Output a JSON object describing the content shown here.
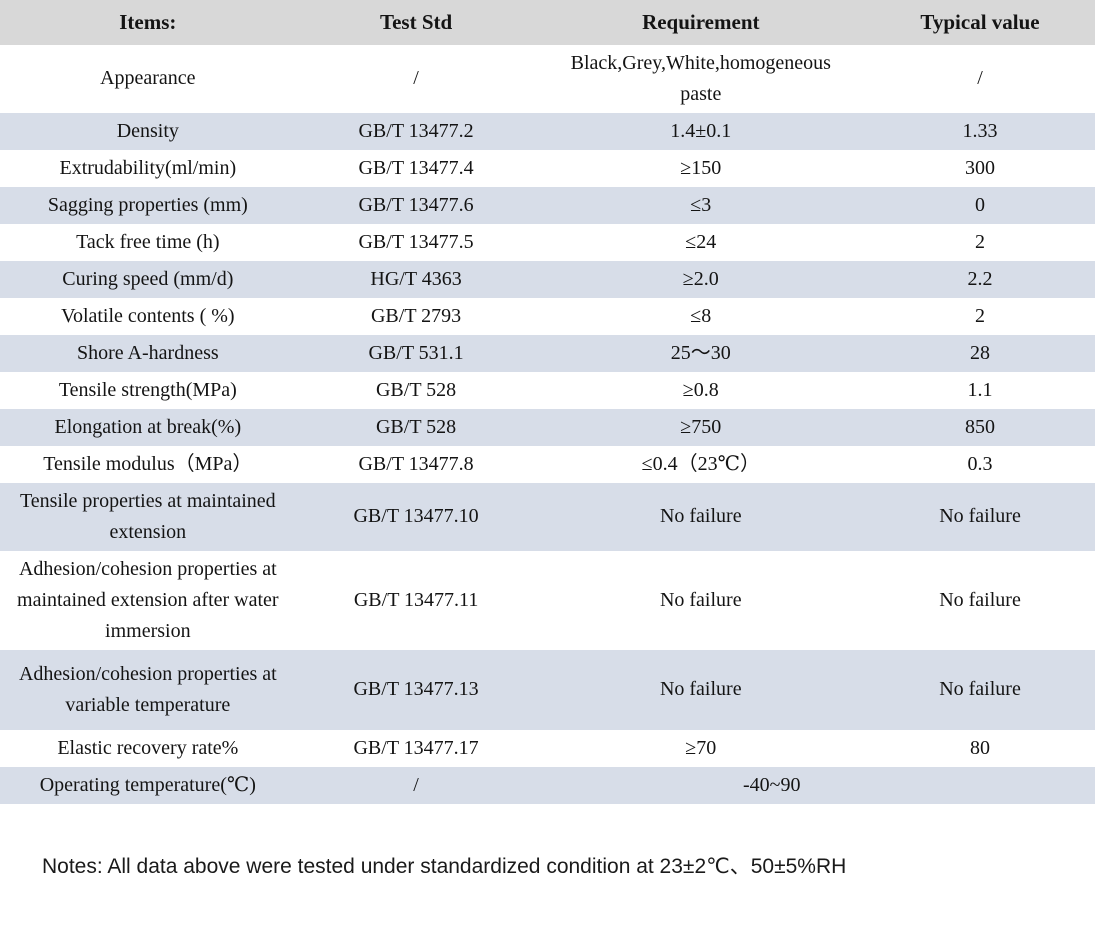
{
  "colors": {
    "header_bg": "#d8d8d8",
    "stripe_bg": "#d7dde8",
    "page_bg": "#ffffff",
    "text": "#141414"
  },
  "table": {
    "headers": [
      "Items:",
      "Test Std",
      "Requirement",
      "Typical value"
    ],
    "rows": [
      {
        "item": "Appearance",
        "std": "/",
        "req": "Black,Grey,White,homogeneous paste",
        "typ": "/"
      },
      {
        "item": "Density",
        "std": "GB/T 13477.2",
        "req": "1.4±0.1",
        "typ": "1.33"
      },
      {
        "item": "Extrudability(ml/min)",
        "std": "GB/T 13477.4",
        "req": "≥150",
        "typ": "300"
      },
      {
        "item": "Sagging properties (mm)",
        "std": "GB/T 13477.6",
        "req": "≤3",
        "typ": "0"
      },
      {
        "item": "Tack free time (h)",
        "std": "GB/T 13477.5",
        "req": "≤24",
        "typ": "2"
      },
      {
        "item": "Curing speed (mm/d)",
        "std": "HG/T 4363",
        "req": "≥2.0",
        "typ": "2.2"
      },
      {
        "item": "Volatile contents ( %)",
        "std": "GB/T 2793",
        "req": "≤8",
        "typ": "2"
      },
      {
        "item": "Shore A-hardness",
        "std": "GB/T 531.1",
        "req": "25～30",
        "typ": "28"
      },
      {
        "item": "Tensile strength(MPa)",
        "std": "GB/T 528",
        "req": "≥0.8",
        "typ": "1.1"
      },
      {
        "item": "Elongation at break(%)",
        "std": "GB/T 528",
        "req": "≥750",
        "typ": "850"
      },
      {
        "item": "Tensile modulus（MPa）",
        "std": "GB/T 13477.8",
        "req": "≤0.4（23℃）",
        "typ": "0.3"
      },
      {
        "item": "Tensile properties at maintained extension",
        "std": "GB/T 13477.10",
        "req": "No failure",
        "typ": "No failure"
      },
      {
        "item": "Adhesion/cohesion properties at maintained extension after water immersion",
        "std": "GB/T 13477.11",
        "req": "No failure",
        "typ": "No failure"
      },
      {
        "item": "Adhesion/cohesion properties at variable temperature",
        "std": "GB/T 13477.13",
        "req": "No failure",
        "typ": "No failure",
        "tall": true
      },
      {
        "item": "Elastic recovery rate%",
        "std": "GB/T 13477.17",
        "req": "≥70",
        "typ": "80"
      },
      {
        "item": "Operating temperature(℃)",
        "std": "/",
        "req_merged": "-40~90"
      }
    ]
  },
  "notes": "Notes: All data above were tested under standardized condition at 23±2℃、50±5%RH"
}
